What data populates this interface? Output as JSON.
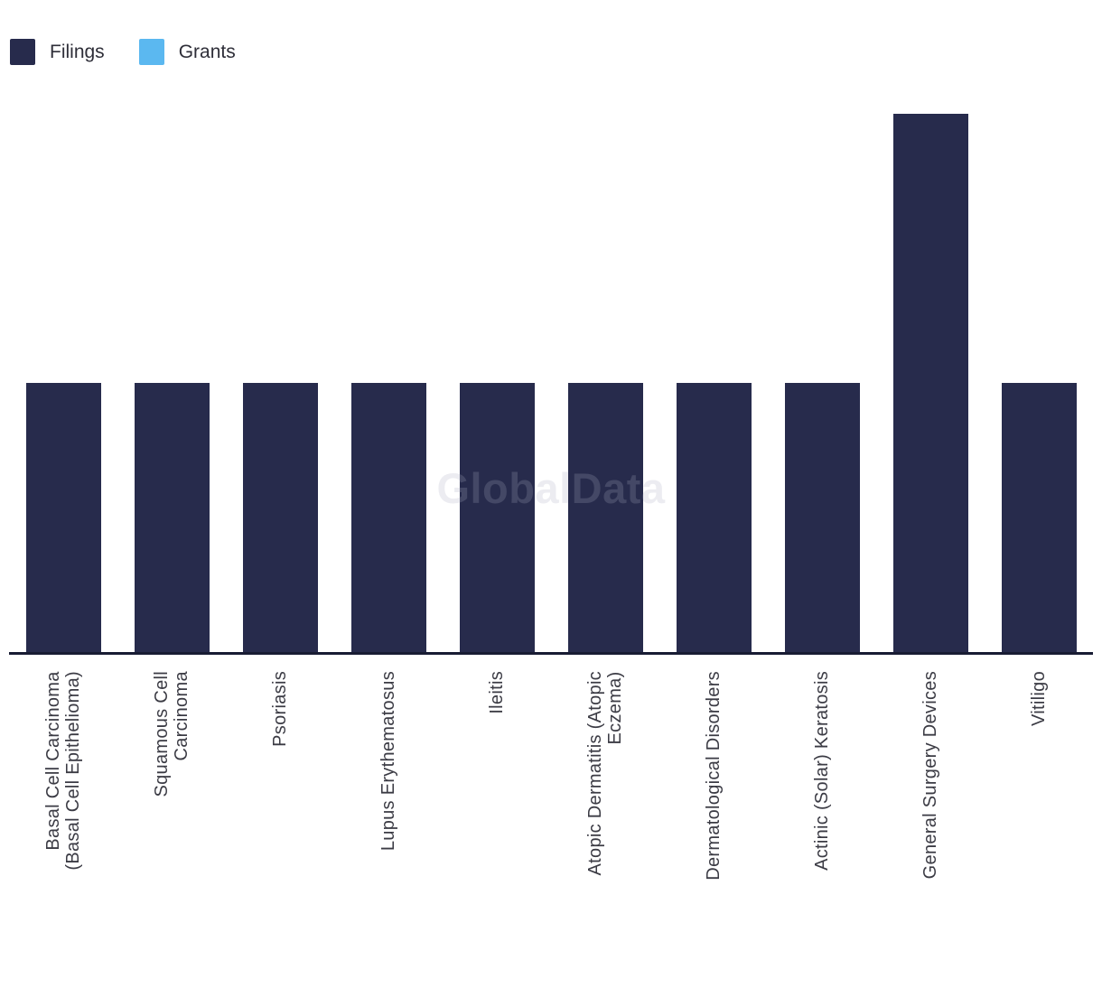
{
  "legend": {
    "items": [
      {
        "label": "Filings",
        "color": "#272b4c"
      },
      {
        "label": "Grants",
        "color": "#5bb8f0"
      }
    ]
  },
  "watermark": "GlobalData",
  "colors": {
    "axis_line": "#181c33",
    "label_text": "#3b3b44",
    "background": "#ffffff"
  },
  "chart_data": {
    "type": "bar",
    "title": "",
    "xlabel": "",
    "ylabel": "",
    "categories": [
      "Basal Cell Carcinoma\n(Basal Cell Epithelioma)",
      "Squamous Cell\nCarcinoma",
      "Psoriasis",
      "Lupus Erythematosus",
      "Ileitis",
      "Atopic Dermatitis (Atopic\nEczema)",
      "Dermatological Disorders",
      "Actinic (Solar) Keratosis",
      "General Surgery Devices",
      "Vitiligo"
    ],
    "series": [
      {
        "name": "Filings",
        "color": "#272b4c",
        "values": [
          1,
          1,
          1,
          1,
          1,
          1,
          1,
          1,
          2,
          1
        ]
      },
      {
        "name": "Grants",
        "color": "#5bb8f0",
        "values": [
          0,
          0,
          0,
          0,
          0,
          0,
          0,
          0,
          0,
          0
        ]
      }
    ],
    "ylim": [
      0,
      2.1
    ],
    "yaxis_visible": false,
    "gridlines": false,
    "legend_position": "top-left",
    "bar_orientation": "vertical",
    "xlabel_rotation_deg": -90
  }
}
